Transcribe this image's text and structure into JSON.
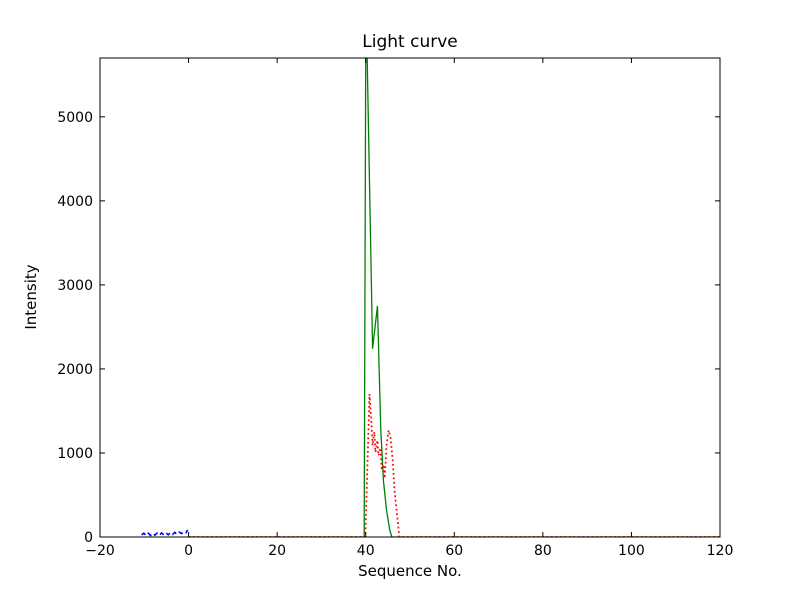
{
  "figure": {
    "background": "#ffffff",
    "frame_color": "#000000"
  },
  "chart_data": {
    "type": "line",
    "title": "Light curve",
    "xlabel": "Sequence No.",
    "ylabel": "Intensity",
    "xlim": [
      -20,
      120
    ],
    "ylim": [
      0,
      5700
    ],
    "xticks": [
      -20,
      0,
      20,
      40,
      60,
      80,
      100,
      120
    ],
    "xtick_labels": [
      "−20",
      "0",
      "20",
      "40",
      "60",
      "80",
      "100",
      "120"
    ],
    "yticks": [
      0,
      1000,
      2000,
      3000,
      4000,
      5000
    ],
    "ytick_labels": [
      "0",
      "1000",
      "2000",
      "3000",
      "4000",
      "5000"
    ],
    "grid": false,
    "legend": null,
    "series": [
      {
        "name": "green-solid",
        "color": "#008000",
        "line_style": "solid",
        "line_width": 1.3,
        "points": [
          [
            0,
            0
          ],
          [
            39.0,
            0
          ],
          [
            39.65,
            0
          ],
          [
            40.05,
            6500
          ],
          [
            41.55,
            2240
          ],
          [
            42.65,
            2750
          ],
          [
            43.4,
            1280
          ],
          [
            44.0,
            670
          ],
          [
            44.7,
            320
          ],
          [
            45.4,
            90
          ],
          [
            45.9,
            0
          ],
          [
            120,
            0
          ]
        ]
      },
      {
        "name": "red-dotted",
        "color": "#ff0000",
        "line_style": "dotted",
        "line_width": 1.7,
        "points": [
          [
            0,
            0
          ],
          [
            39.9,
            0
          ],
          [
            40.25,
            600
          ],
          [
            40.85,
            1700
          ],
          [
            41.25,
            1390
          ],
          [
            41.55,
            1090
          ],
          [
            41.95,
            1250
          ],
          [
            42.2,
            1010
          ],
          [
            42.65,
            1150
          ],
          [
            42.9,
            970
          ],
          [
            43.35,
            1060
          ],
          [
            43.6,
            800
          ],
          [
            44.0,
            860
          ],
          [
            44.3,
            700
          ],
          [
            44.7,
            1090
          ],
          [
            45.15,
            1270
          ],
          [
            45.6,
            1190
          ],
          [
            46.1,
            910
          ],
          [
            46.5,
            560
          ],
          [
            47.0,
            300
          ],
          [
            47.6,
            0
          ],
          [
            120,
            0
          ]
        ]
      },
      {
        "name": "blue-dashed",
        "color": "#0000ff",
        "line_style": "dashed",
        "line_width": 1.6,
        "points": [
          [
            -10.6,
            25
          ],
          [
            -10.1,
            45
          ],
          [
            -9.6,
            18
          ],
          [
            -9.1,
            45
          ],
          [
            -8.6,
            18
          ],
          [
            -8.1,
            45
          ],
          [
            -7.6,
            22
          ],
          [
            -7.1,
            48
          ],
          [
            -6.6,
            22
          ],
          [
            -6.1,
            48
          ],
          [
            -5.6,
            26
          ],
          [
            -5.1,
            50
          ],
          [
            -4.6,
            26
          ],
          [
            -4.1,
            52
          ],
          [
            -3.6,
            30
          ],
          [
            -3.1,
            55
          ],
          [
            -2.6,
            32
          ],
          [
            -2.1,
            58
          ],
          [
            -1.6,
            40
          ],
          [
            -1.1,
            62
          ],
          [
            -0.6,
            50
          ],
          [
            -0.2,
            85
          ]
        ]
      }
    ]
  }
}
